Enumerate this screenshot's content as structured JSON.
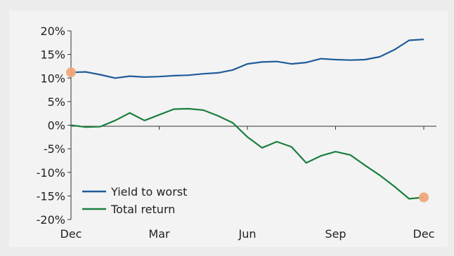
{
  "chart_data": {
    "type": "line",
    "title": "",
    "xlabel": "",
    "ylabel": "",
    "x_ticks": [
      "Dec",
      "Mar",
      "Jun",
      "Sep",
      "Dec"
    ],
    "y_ticks": [
      "20%",
      "15%",
      "10%",
      "5%",
      "0%",
      "-5%",
      "-10%",
      "-15%",
      "-20%"
    ],
    "ylim": [
      -20,
      20
    ],
    "x": [
      0,
      0.5,
      1,
      1.5,
      2,
      2.5,
      3,
      3.5,
      4,
      4.5,
      5,
      5.5,
      6,
      6.5,
      7,
      7.5,
      8,
      8.5,
      9,
      9.5,
      10,
      10.5,
      11,
      11.5,
      12
    ],
    "series": [
      {
        "name": "Yield to worst",
        "color": "#1f5c99",
        "values": [
          11.2,
          11.3,
          10.7,
          10.0,
          10.4,
          10.2,
          10.3,
          10.5,
          10.6,
          10.9,
          11.1,
          11.7,
          13.0,
          13.4,
          13.5,
          13.0,
          13.3,
          14.1,
          13.9,
          13.8,
          13.9,
          14.5,
          16.0,
          18.0,
          18.2
        ]
      },
      {
        "name": "Total return",
        "color": "#1a7f3e",
        "values": [
          0.0,
          -0.4,
          -0.3,
          1.0,
          2.6,
          1.0,
          2.2,
          3.4,
          3.5,
          3.2,
          2.0,
          0.5,
          -2.5,
          -4.8,
          -3.5,
          -4.6,
          -8.0,
          -6.5,
          -5.6,
          -6.3,
          -8.5,
          -10.6,
          -13.0,
          -15.6,
          -15.3
        ]
      }
    ],
    "markers": [
      {
        "series": "Yield to worst",
        "x": 0,
        "y": 11.2,
        "color": "#f0a67a"
      },
      {
        "series": "Total return",
        "x": 12,
        "y": -15.3,
        "color": "#f0a67a"
      }
    ],
    "legend": {
      "placement": "bottom-left"
    },
    "grid": false
  }
}
